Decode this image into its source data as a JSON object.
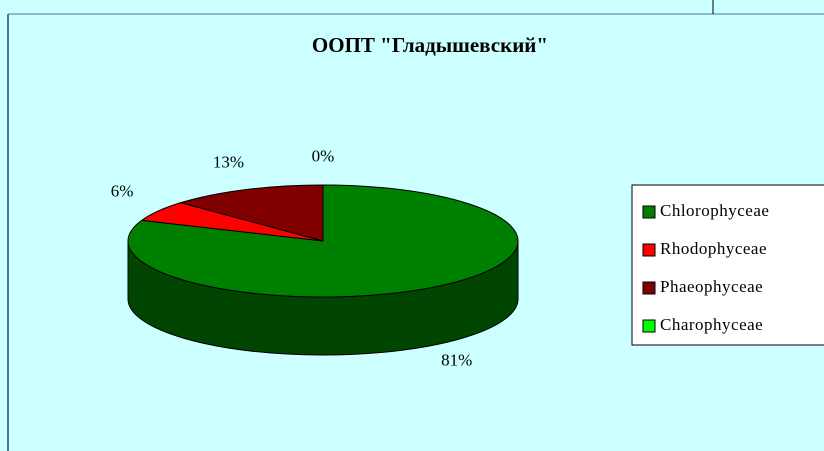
{
  "chart_data": {
    "type": "pie",
    "title": "ООПТ \"Гладышевский\"",
    "categories": [
      "Chlorophyceae",
      "Rhodophyceae",
      "Phaeophyceae",
      "Charophyceae"
    ],
    "values": [
      81,
      6,
      13,
      0
    ],
    "value_labels": [
      "81%",
      "6%",
      "13%",
      "0%"
    ],
    "colors": [
      "#008000",
      "#ff0000",
      "#800000",
      "#00ff00"
    ],
    "legend": "right"
  }
}
